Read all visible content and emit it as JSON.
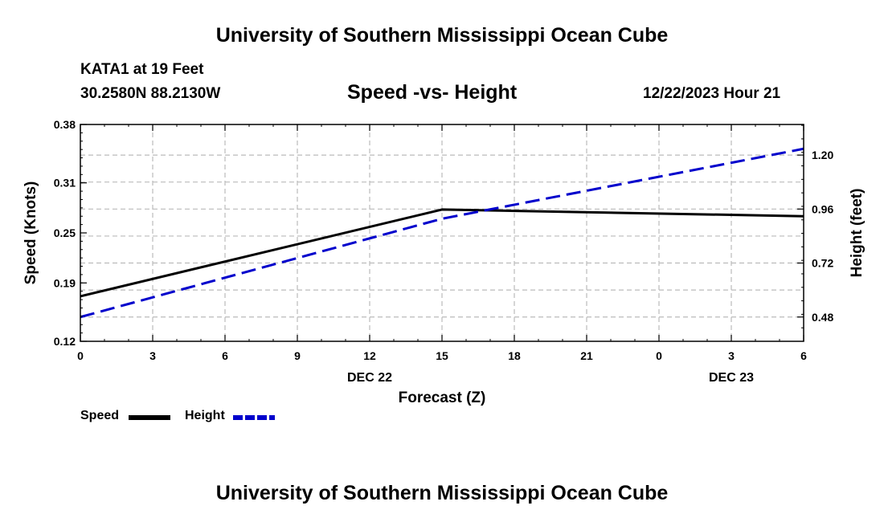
{
  "page_title": "University of Southern Mississippi Ocean Cube",
  "footer_title": "University of Southern Mississippi Ocean Cube",
  "station": "KATA1 at 19 Feet",
  "coordinates": "30.2580N  88.2130W",
  "issued": "12/22/2023 Hour 21",
  "chart_data": {
    "type": "line",
    "title": "Speed -vs- Height",
    "xlabel": "Forecast (Z)",
    "ylabel_left": "Speed (Knots)",
    "ylabel_right": "Height (feet)",
    "x_hours": [
      0,
      3,
      6,
      9,
      12,
      15,
      18,
      21,
      24,
      27,
      30
    ],
    "x_tick_labels": [
      "0",
      "3",
      "6",
      "9",
      "12",
      "15",
      "18",
      "21",
      "0",
      "3",
      "6"
    ],
    "date_labels": [
      {
        "hour": 12,
        "label": "DEC 22"
      },
      {
        "hour": 27,
        "label": "DEC 23"
      }
    ],
    "y_left_ticks": [
      "0.12",
      "0.19",
      "0.25",
      "0.31",
      "0.38"
    ],
    "y_left_range": [
      0.12,
      0.38
    ],
    "y_right_ticks": [
      "0.48",
      "0.72",
      "0.96",
      "1.20"
    ],
    "y_right_range": [
      0.372,
      1.336
    ],
    "grid": true,
    "series": [
      {
        "name": "Speed",
        "axis": "left",
        "color": "#000000",
        "style": "solid",
        "x": [
          0,
          15,
          30
        ],
        "values": [
          0.174,
          0.278,
          0.27
        ]
      },
      {
        "name": "Height",
        "axis": "right",
        "color": "#0000cc",
        "style": "dashed",
        "x": [
          0,
          15,
          30
        ],
        "values": [
          0.48,
          0.917,
          1.228
        ]
      }
    ],
    "legend": [
      "Speed",
      "Height"
    ]
  }
}
